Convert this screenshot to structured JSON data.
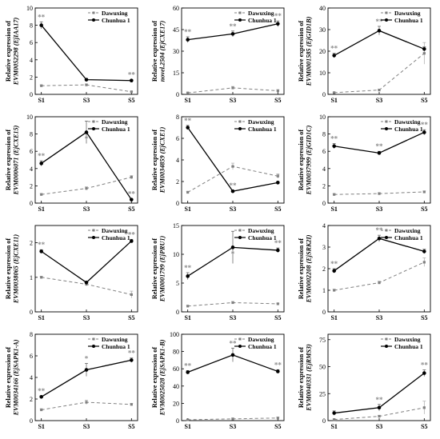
{
  "legend": {
    "dawuxing": "Dawuxing",
    "chunhua": "Chunhua 1"
  },
  "colors": {
    "chunhua": "#000000",
    "dawuxing": "#808080",
    "stars": "#8c8c8c"
  },
  "chart_data": [
    {
      "type": "line",
      "ylabel_top": "Relative expression of",
      "ylabel_bottom": "EVM0052298 (EjIAA17)",
      "categories": [
        "S1",
        "S3",
        "S5"
      ],
      "ylim": [
        0,
        10
      ],
      "yticks": [
        "0",
        "2",
        "4",
        "6",
        "8",
        "10"
      ],
      "series": [
        {
          "name": "Chunhua 1",
          "values": [
            8.0,
            1.7,
            1.6
          ],
          "err": [
            0.4,
            0.15,
            0.1
          ]
        },
        {
          "name": "Dawuxing",
          "values": [
            1.0,
            1.1,
            0.3
          ],
          "err": [
            0.1,
            0.1,
            0.05
          ]
        }
      ],
      "stars": [
        "**",
        "",
        "**"
      ]
    },
    {
      "type": "line",
      "ylabel_top": "Relative expression of",
      "ylabel_bottom": "novel.2504 (EjCXE17)",
      "categories": [
        "S1",
        "S3",
        "S5"
      ],
      "ylim": [
        0,
        60
      ],
      "yticks": [
        "0",
        "15",
        "30",
        "45",
        "60"
      ],
      "series": [
        {
          "name": "Chunhua 1",
          "values": [
            38,
            42,
            49
          ],
          "err": [
            2,
            2,
            2
          ]
        },
        {
          "name": "Dawuxing",
          "values": [
            1.0,
            4.5,
            2.5
          ],
          "err": [
            0.5,
            1.0,
            0.8
          ]
        }
      ],
      "stars": [
        "**",
        "**",
        "**"
      ]
    },
    {
      "type": "line",
      "ylabel_top": "Relative expression of",
      "ylabel_bottom": "EVM0001585 (EjGID1B)",
      "categories": [
        "S1",
        "S3",
        "S5"
      ],
      "ylim": [
        0,
        40
      ],
      "yticks": [
        "0",
        "10",
        "20",
        "30",
        "40"
      ],
      "series": [
        {
          "name": "Chunhua 1",
          "values": [
            18,
            29.5,
            21
          ],
          "err": [
            1,
            2,
            1
          ]
        },
        {
          "name": "Dawuxing",
          "values": [
            0.8,
            2.0,
            19
          ],
          "err": [
            0.2,
            0.4,
            5
          ]
        }
      ],
      "stars": [
        "**",
        "**",
        ""
      ]
    },
    {
      "type": "line",
      "ylabel_top": "Relative expression of",
      "ylabel_bottom": "EVM0006071 (EjCXE15)",
      "categories": [
        "S1",
        "S3",
        "S5"
      ],
      "ylim": [
        0,
        10
      ],
      "yticks": [
        "0",
        "2",
        "4",
        "6",
        "8",
        "10"
      ],
      "series": [
        {
          "name": "Chunhua 1",
          "values": [
            4.6,
            8.2,
            0.4
          ],
          "err": [
            0.3,
            1.3,
            0.1
          ]
        },
        {
          "name": "Dawuxing",
          "values": [
            1.0,
            1.7,
            3.0
          ],
          "err": [
            0.1,
            0.2,
            0.2
          ]
        }
      ],
      "stars": [
        "**",
        "*",
        "**"
      ]
    },
    {
      "type": "line",
      "ylabel_top": "Relative expression of",
      "ylabel_bottom": "EVM0034859 (EjCXE1)",
      "categories": [
        "S1",
        "S3",
        "S5"
      ],
      "ylim": [
        0,
        8
      ],
      "yticks": [
        "0",
        "2",
        "4",
        "6",
        "8"
      ],
      "series": [
        {
          "name": "Chunhua 1",
          "values": [
            7.0,
            1.1,
            1.9
          ],
          "err": [
            0.2,
            0.1,
            0.1
          ]
        },
        {
          "name": "Dawuxing",
          "values": [
            1.0,
            3.4,
            2.5
          ],
          "err": [
            0.1,
            0.3,
            0.2
          ]
        }
      ],
      "stars": [
        "**",
        "**",
        "*"
      ]
    },
    {
      "type": "line",
      "ylabel_top": "Relative expression of",
      "ylabel_bottom": "EVM0037999 (EjGID1C)",
      "categories": [
        "S1",
        "S3",
        "S5"
      ],
      "ylim": [
        0,
        10
      ],
      "yticks": [
        "0",
        "2",
        "4",
        "6",
        "8",
        "10"
      ],
      "series": [
        {
          "name": "Chunhua 1",
          "values": [
            6.6,
            5.8,
            8.2
          ],
          "err": [
            0.3,
            0.2,
            0.3
          ]
        },
        {
          "name": "Dawuxing",
          "values": [
            1.0,
            1.1,
            1.3
          ],
          "err": [
            0.1,
            0.1,
            0.1
          ]
        }
      ],
      "stars": [
        "**",
        "**",
        "**"
      ]
    },
    {
      "type": "line",
      "ylabel_top": "Relative expression of",
      "ylabel_bottom": "EVM0038065 (EjCXE11)",
      "categories": [
        "S1",
        "S3",
        "S5"
      ],
      "ylim": [
        0,
        2.5
      ],
      "yticks": [
        "0",
        "1",
        "2"
      ],
      "series": [
        {
          "name": "Chunhua 1",
          "values": [
            1.75,
            0.85,
            2.05
          ],
          "err": [
            0.05,
            0.04,
            0.05
          ]
        },
        {
          "name": "Dawuxing",
          "values": [
            1.0,
            0.8,
            0.5
          ],
          "err": [
            0.03,
            0.05,
            0.1
          ]
        }
      ],
      "stars": [
        "**",
        "",
        "**"
      ]
    },
    {
      "type": "line",
      "ylabel_top": "Relative expression of",
      "ylabel_bottom": "EVM0001799 (EjPRU1)",
      "categories": [
        "S1",
        "S3",
        "S5"
      ],
      "ylim": [
        0,
        15
      ],
      "yticks": [
        "0",
        "5",
        "10",
        "15"
      ],
      "series": [
        {
          "name": "Chunhua 1",
          "values": [
            6.2,
            11.2,
            10.7
          ],
          "err": [
            0.6,
            2.8,
            0.4
          ]
        },
        {
          "name": "Dawuxing",
          "values": [
            1.0,
            1.6,
            1.4
          ],
          "err": [
            0.1,
            0.2,
            0.1
          ]
        }
      ],
      "stars": [
        "**",
        "*",
        "**"
      ]
    },
    {
      "type": "line",
      "ylabel_top": "Relative expression of",
      "ylabel_bottom": "EVM0002208 (EjSRK2I)",
      "categories": [
        "S1",
        "S3",
        "S5"
      ],
      "ylim": [
        0,
        4
      ],
      "yticks": [
        "0",
        "1",
        "2",
        "3",
        "4"
      ],
      "series": [
        {
          "name": "Chunhua 1",
          "values": [
            1.9,
            3.4,
            2.8
          ],
          "err": [
            0.1,
            0.15,
            0.1
          ]
        },
        {
          "name": "Dawuxing",
          "values": [
            1.0,
            1.35,
            2.3
          ],
          "err": [
            0.05,
            0.07,
            0.2
          ]
        }
      ],
      "stars": [
        "**",
        "**",
        ""
      ]
    },
    {
      "type": "line",
      "ylabel_top": "Relative expression of",
      "ylabel_bottom": "EVM0034166 (EjSAPK1-A)",
      "categories": [
        "S1",
        "S3",
        "S5"
      ],
      "ylim": [
        0,
        8
      ],
      "yticks": [
        "0",
        "2",
        "4",
        "6",
        "8"
      ],
      "series": [
        {
          "name": "Chunhua 1",
          "values": [
            2.2,
            4.7,
            5.6
          ],
          "err": [
            0.1,
            0.6,
            0.2
          ]
        },
        {
          "name": "Dawuxing",
          "values": [
            1.0,
            1.7,
            1.5
          ],
          "err": [
            0.1,
            0.2,
            0.1
          ]
        }
      ],
      "stars": [
        "**",
        "*",
        "**"
      ]
    },
    {
      "type": "line",
      "ylabel_top": "Relative expression of",
      "ylabel_bottom": "EVM0025028 (EjSAPK1-B)",
      "categories": [
        "S1",
        "S3",
        "S5"
      ],
      "ylim": [
        0,
        100
      ],
      "yticks": [
        "0",
        "20",
        "40",
        "60",
        "80",
        "100"
      ],
      "series": [
        {
          "name": "Chunhua 1",
          "values": [
            56,
            76,
            57
          ],
          "err": [
            2,
            8,
            2
          ]
        },
        {
          "name": "Dawuxing",
          "values": [
            1,
            2,
            3
          ],
          "err": [
            0.5,
            0.8,
            1
          ]
        }
      ],
      "stars": [
        "**",
        "**",
        "**"
      ]
    },
    {
      "type": "line",
      "ylabel_top": "Relative expression of",
      "ylabel_bottom": "EVM0040331 (EjRMS3)",
      "categories": [
        "S1",
        "S3",
        "S5"
      ],
      "ylim": [
        0,
        80
      ],
      "yticks": [
        "0",
        "25",
        "50",
        "75"
      ],
      "series": [
        {
          "name": "Chunhua 1",
          "values": [
            7,
            12,
            44
          ],
          "err": [
            2,
            3,
            3
          ]
        },
        {
          "name": "Dawuxing",
          "values": [
            1,
            4,
            12
          ],
          "err": [
            0.5,
            1,
            6
          ]
        }
      ],
      "stars": [
        "",
        "**",
        "**"
      ]
    }
  ]
}
